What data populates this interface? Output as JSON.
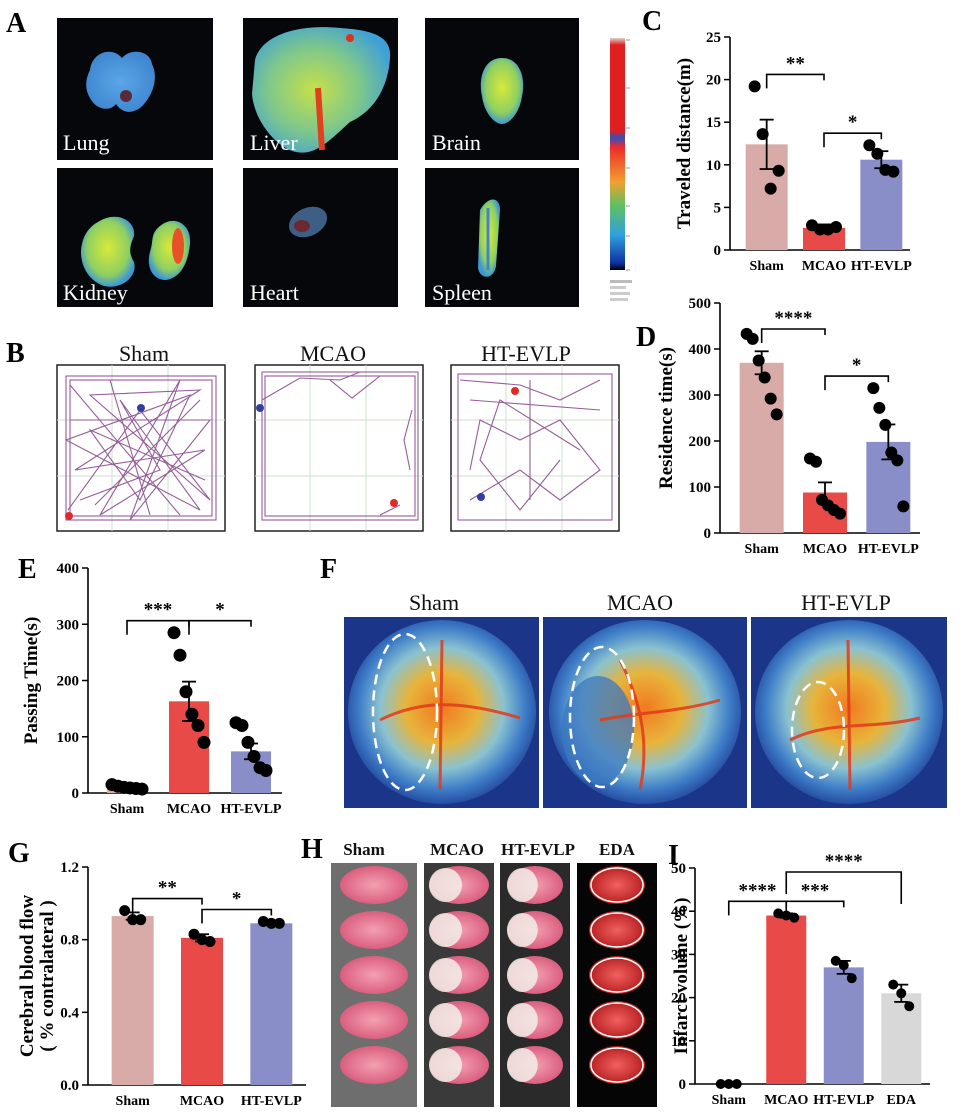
{
  "panels": {
    "A": {
      "label": "A",
      "organs": [
        "Lung",
        "Liver",
        "Brain",
        "Kidney",
        "Heart",
        "Spleen"
      ]
    },
    "B": {
      "label": "B",
      "groups": [
        "Sham",
        "MCAO",
        "HT-EVLP"
      ]
    },
    "F": {
      "label": "F",
      "groups": [
        "Sham",
        "MCAO",
        "HT-EVLP"
      ]
    },
    "H": {
      "label": "H",
      "groups": [
        "Sham",
        "MCAO",
        "HT-EVLP",
        "EDA"
      ]
    }
  },
  "colors": {
    "sham": "#d8aaa8",
    "mcao": "#e84a48",
    "htevlp": "#8a8ec8",
    "eda": "#d8d8d8"
  },
  "chart_data": [
    {
      "panel": "C",
      "type": "bar",
      "ylabel": "Traveled distance(m)",
      "categories": [
        "Sham",
        "MCAO",
        "HT-EVLP"
      ],
      "values": [
        12.4,
        2.6,
        10.6
      ],
      "sem": [
        2.9,
        0.4,
        1.0
      ],
      "points": [
        [
          19.2,
          13.6,
          7.2,
          9.3
        ],
        [
          2.9,
          2.4,
          2.4,
          2.7
        ],
        [
          12.3,
          11.3,
          9.4,
          9.2
        ]
      ],
      "ylim": [
        0,
        25
      ],
      "yticks": [
        0,
        5,
        10,
        15,
        20,
        25
      ],
      "significance": [
        {
          "from": 0,
          "to": 1,
          "label": "**"
        },
        {
          "from": 1,
          "to": 2,
          "label": "*"
        }
      ]
    },
    {
      "panel": "D",
      "type": "bar",
      "ylabel": "Residence time(s)",
      "categories": [
        "Sham",
        "MCAO",
        "HT-EVLP"
      ],
      "values": [
        370,
        88,
        198
      ],
      "sem": [
        25,
        22,
        38
      ],
      "points": [
        [
          433,
          422,
          375,
          338,
          292,
          258
        ],
        [
          162,
          155,
          72,
          60,
          50,
          42
        ],
        [
          315,
          272,
          235,
          175,
          158,
          58
        ]
      ],
      "ylim": [
        0,
        500
      ],
      "yticks": [
        0,
        100,
        200,
        300,
        400,
        500
      ],
      "significance": [
        {
          "from": 0,
          "to": 1,
          "label": "****"
        },
        {
          "from": 1,
          "to": 2,
          "label": "*"
        }
      ]
    },
    {
      "panel": "E",
      "type": "bar",
      "ylabel": "Passing Time(s)",
      "categories": [
        "Sham",
        "MCAO",
        "HT-EVLP"
      ],
      "values": [
        11,
        163,
        74
      ],
      "sem": [
        3,
        35,
        14
      ],
      "points": [
        [
          15,
          12,
          10,
          9,
          8,
          7
        ],
        [
          285,
          245,
          180,
          140,
          120,
          90
        ],
        [
          125,
          120,
          90,
          65,
          45,
          40
        ]
      ],
      "ylim": [
        0,
        400
      ],
      "yticks": [
        0,
        100,
        200,
        300,
        400
      ],
      "significance": [
        {
          "from": 0,
          "to": 1,
          "label": "***"
        },
        {
          "from": 1,
          "to": 2,
          "label": "*"
        }
      ]
    },
    {
      "panel": "G",
      "type": "bar",
      "ylabel": "Cerebral blood flow",
      "ylabel2": "( % contralateral )",
      "categories": [
        "Sham",
        "MCAO",
        "HT-EVLP"
      ],
      "values": [
        0.93,
        0.81,
        0.89
      ],
      "sem": [
        0.02,
        0.02,
        0.01
      ],
      "points": [
        [
          0.96,
          0.91,
          0.91
        ],
        [
          0.83,
          0.8,
          0.79
        ],
        [
          0.9,
          0.89,
          0.89
        ]
      ],
      "ylim": [
        0,
        1.2
      ],
      "yticks": [
        "0.0",
        "0.4",
        "0.8",
        "1.2"
      ],
      "significance": [
        {
          "from": 0,
          "to": 1,
          "label": "**"
        },
        {
          "from": 1,
          "to": 2,
          "label": "*"
        }
      ]
    },
    {
      "panel": "I",
      "type": "bar",
      "ylabel": "Infarct volume (%)",
      "categories": [
        "Sham",
        "MCAO",
        "HT-EVLP",
        "EDA"
      ],
      "values": [
        0,
        39,
        27,
        21
      ],
      "sem": [
        0,
        0.5,
        1.5,
        2
      ],
      "points": [
        [
          0,
          0,
          0
        ],
        [
          39.5,
          39,
          38.5
        ],
        [
          28.5,
          27.5,
          24.5
        ],
        [
          23,
          21,
          18
        ]
      ],
      "ylim": [
        0,
        50
      ],
      "yticks": [
        0,
        10,
        20,
        30,
        40,
        50
      ],
      "significance": [
        {
          "from": 0,
          "to": 1,
          "label": "****"
        },
        {
          "from": 1,
          "to": 2,
          "label": "***"
        },
        {
          "from": 1,
          "to": 3,
          "label": "****"
        }
      ]
    }
  ]
}
